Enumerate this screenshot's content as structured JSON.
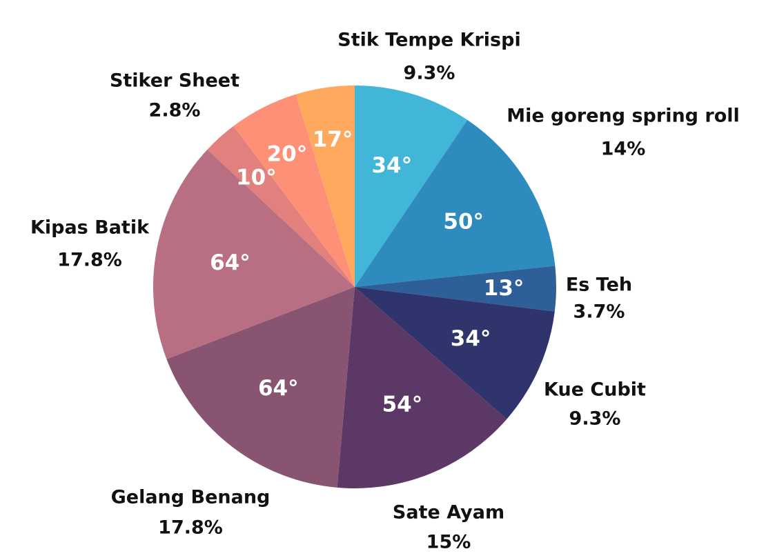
{
  "chart_data": {
    "type": "pie",
    "degree_symbol": "°",
    "slices": [
      {
        "name": "Stik Tempe Krispi",
        "percent_label": "9.3%",
        "degrees": 34,
        "color": "#41b6d8"
      },
      {
        "name": "Mie goreng spring roll",
        "percent_label": "14%",
        "degrees": 50,
        "color": "#2e8bbd"
      },
      {
        "name": "Es Teh",
        "percent_label": "3.7%",
        "degrees": 13,
        "color": "#2e5f99"
      },
      {
        "name": "Kue Cubit",
        "percent_label": "9.3%",
        "degrees": 34,
        "color": "#30346c"
      },
      {
        "name": "Sate Ayam",
        "percent_label": "15%",
        "degrees": 54,
        "color": "#5c3866"
      },
      {
        "name": "Gelang Benang",
        "percent_label": "17.8%",
        "degrees": 64,
        "color": "#895472"
      },
      {
        "name": "Kipas Batik",
        "percent_label": "17.8%",
        "degrees": 64,
        "color": "#b86f82"
      },
      {
        "name": "Stiker Sheet",
        "percent_label": "2.8%",
        "degrees": 10,
        "color": "#e1807d"
      },
      {
        "name": "",
        "percent_label": "",
        "degrees": 20,
        "color": "#fe9077"
      },
      {
        "name": "",
        "percent_label": "",
        "degrees": 17,
        "color": "#fea95d"
      }
    ]
  }
}
